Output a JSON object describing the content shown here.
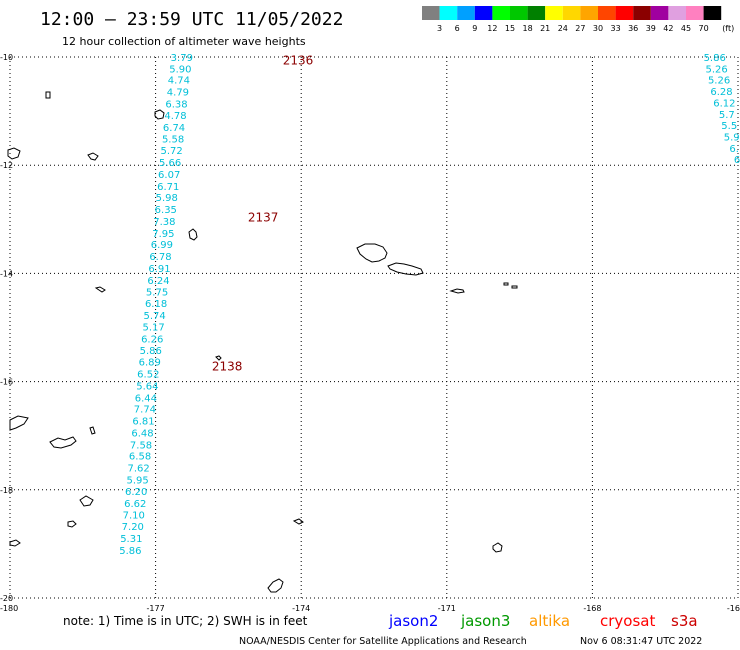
{
  "header": {
    "title": "12:00 – 23:59 UTC 11/05/2022",
    "subtitle": "12 hour collection of altimeter wave heights"
  },
  "color_scale": {
    "labels": [
      "3",
      "6",
      "9",
      "12",
      "15",
      "18",
      "21",
      "24",
      "27",
      "30",
      "33",
      "36",
      "39",
      "42",
      "45",
      "70"
    ],
    "unit": "(ft)",
    "colors": [
      "#808080",
      "#00ffff",
      "#00a0ff",
      "#0000ff",
      "#00ff00",
      "#00c800",
      "#008000",
      "#ffff00",
      "#ffd700",
      "#ffa500",
      "#ff4500",
      "#ff0000",
      "#8b0000",
      "#a000a0",
      "#e0a0e0",
      "#ff80c0",
      "#000000"
    ]
  },
  "map": {
    "lon_labels": [
      "-180",
      "-177",
      "-174",
      "-171",
      "-168",
      "-16"
    ],
    "lat_labels": [
      "-10",
      "-12",
      "-14",
      "-16",
      "-18",
      "-20"
    ],
    "obs_color": "#00bfd8",
    "pass_color": "#8b0000",
    "passes": [
      {
        "id": "2136",
        "lon": -174.38,
        "lat": -10.05
      },
      {
        "id": "2137",
        "lon": -175.1,
        "lat": -12.95
      },
      {
        "id": "2138",
        "lon": -175.84,
        "lat": -15.7
      }
    ],
    "tracks": [
      {
        "name": "track-a",
        "obs": [
          {
            "v": "3.79",
            "lon": -176.46,
            "lat": -10.0
          },
          {
            "v": "5.90",
            "lon": -176.49,
            "lat": -10.21
          },
          {
            "v": "4.74",
            "lon": -176.52,
            "lat": -10.42
          },
          {
            "v": "4.79",
            "lon": -176.54,
            "lat": -10.64
          },
          {
            "v": "6.38",
            "lon": -176.57,
            "lat": -10.86
          },
          {
            "v": "4.78",
            "lon": -176.59,
            "lat": -11.07
          },
          {
            "v": "6.74",
            "lon": -176.62,
            "lat": -11.29
          },
          {
            "v": "5.58",
            "lon": -176.64,
            "lat": -11.51
          },
          {
            "v": "5.72",
            "lon": -176.67,
            "lat": -11.72
          },
          {
            "v": "5.66",
            "lon": -176.7,
            "lat": -11.94
          },
          {
            "v": "6.07",
            "lon": -176.72,
            "lat": -12.16
          },
          {
            "v": "6.71",
            "lon": -176.74,
            "lat": -12.38
          },
          {
            "v": "5.98",
            "lon": -176.77,
            "lat": -12.59
          },
          {
            "v": "6.35",
            "lon": -176.79,
            "lat": -12.81
          },
          {
            "v": "7.38",
            "lon": -176.82,
            "lat": -13.03
          },
          {
            "v": "7.95",
            "lon": -176.84,
            "lat": -13.25
          },
          {
            "v": "6.99",
            "lon": -176.87,
            "lat": -13.46
          },
          {
            "v": "6.78",
            "lon": -176.9,
            "lat": -13.68
          },
          {
            "v": "6.91",
            "lon": -176.92,
            "lat": -13.9
          },
          {
            "v": "6.24",
            "lon": -176.94,
            "lat": -14.12
          },
          {
            "v": "5.75",
            "lon": -176.97,
            "lat": -14.33
          },
          {
            "v": "6.18",
            "lon": -176.99,
            "lat": -14.55
          },
          {
            "v": "5.74",
            "lon": -177.02,
            "lat": -14.77
          },
          {
            "v": "5.17",
            "lon": -177.04,
            "lat": -14.98
          },
          {
            "v": "6.26",
            "lon": -177.07,
            "lat": -15.2
          },
          {
            "v": "5.86",
            "lon": -177.1,
            "lat": -15.42
          },
          {
            "v": "6.89",
            "lon": -177.12,
            "lat": -15.63
          },
          {
            "v": "6.52",
            "lon": -177.15,
            "lat": -15.85
          },
          {
            "v": "5.64",
            "lon": -177.17,
            "lat": -16.07
          },
          {
            "v": "6.44",
            "lon": -177.2,
            "lat": -16.29
          },
          {
            "v": "7.74",
            "lon": -177.22,
            "lat": -16.5
          },
          {
            "v": "6.81",
            "lon": -177.25,
            "lat": -16.72
          },
          {
            "v": "6.48",
            "lon": -177.27,
            "lat": -16.94
          },
          {
            "v": "7.58",
            "lon": -177.3,
            "lat": -17.16
          },
          {
            "v": "6.58",
            "lon": -177.32,
            "lat": -17.37
          },
          {
            "v": "7.62",
            "lon": -177.35,
            "lat": -17.59
          },
          {
            "v": "5.95",
            "lon": -177.37,
            "lat": -17.81
          },
          {
            "v": "6.20",
            "lon": -177.4,
            "lat": -18.02
          },
          {
            "v": "6.62",
            "lon": -177.42,
            "lat": -18.24
          },
          {
            "v": "7.10",
            "lon": -177.45,
            "lat": -18.46
          },
          {
            "v": "7.20",
            "lon": -177.47,
            "lat": -18.67
          },
          {
            "v": "5.31",
            "lon": -177.5,
            "lat": -18.89
          },
          {
            "v": "5.86",
            "lon": -177.52,
            "lat": -19.11
          }
        ]
      },
      {
        "name": "track-b",
        "obs": [
          {
            "v": "5.86",
            "lon": -165.48,
            "lat": -10.0
          },
          {
            "v": "5.26",
            "lon": -165.44,
            "lat": -10.21
          },
          {
            "v": "5.26",
            "lon": -165.39,
            "lat": -10.42
          },
          {
            "v": "6.28",
            "lon": -165.34,
            "lat": -10.63
          },
          {
            "v": "6.12",
            "lon": -165.28,
            "lat": -10.84
          },
          {
            "v": "5.7",
            "lon": -165.23,
            "lat": -11.05
          },
          {
            "v": "5.5",
            "lon": -165.18,
            "lat": -11.26
          },
          {
            "v": "5.9",
            "lon": -165.13,
            "lat": -11.47
          },
          {
            "v": "6.",
            "lon": -165.08,
            "lat": -11.68
          },
          {
            "v": "6",
            "lon": -165.02,
            "lat": -11.89
          }
        ]
      }
    ]
  },
  "footer": {
    "note": "note: 1) Time is in UTC; 2) SWH is in feet",
    "satellites": [
      {
        "name": "jason2",
        "color": "#0000ff"
      },
      {
        "name": "jason3",
        "color": "#009900"
      },
      {
        "name": "altika",
        "color": "#ff9900"
      },
      {
        "name": "cryosat",
        "color": "#ff0000"
      },
      {
        "name": "s3a",
        "color": "#cc0000"
      }
    ],
    "credit": "NOAA/NESDIS Center for Satellite Applications and Research",
    "timestamp": "Nov  6 08:31:47 UTC 2022"
  }
}
